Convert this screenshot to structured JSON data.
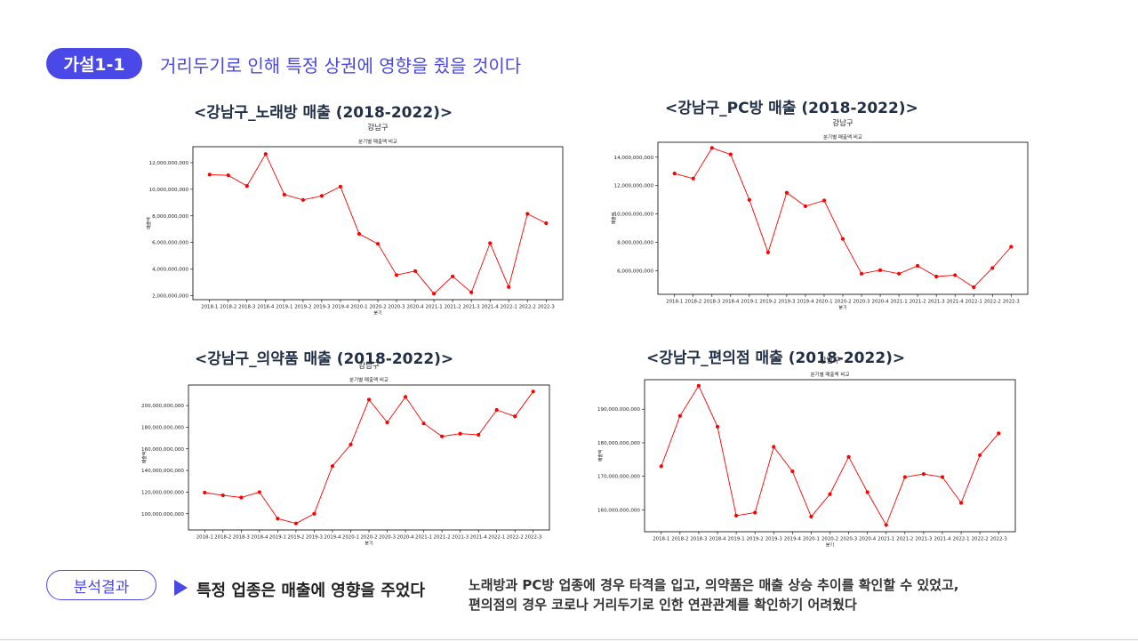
{
  "header": {
    "badge": "가설1-1",
    "title": "거리두기로 인해 특정 상권에 영향을 줬을 것이다"
  },
  "result": {
    "pill": "분석결과",
    "conclusion": "특정 업종은 매출에 영향을 주었다",
    "desc_line1": "노래방과 PC방 업종에 경우 타격을 입고, 의약품은 매출 상승 추이를 확인할 수 있었고,",
    "desc_line2": "편의점의 경우 코로나 거리두기로 인한 연관관계를 확인하기 어려웠다"
  },
  "colors": {
    "accent": "#4a48e6",
    "series": "#ff0000"
  },
  "chart_data": [
    {
      "heading": "<강남구_노래방 매출 (2018-2022)>",
      "type": "line",
      "title": "강남구",
      "subtitle": "분기별 매출액 비교",
      "xlabel": "분기",
      "ylabel": "매출액",
      "x": [
        "2018-1",
        "2018-2",
        "2018-3",
        "2018-4",
        "2019-1",
        "2019-2",
        "2019-3",
        "2019-4",
        "2020-1",
        "2020-2",
        "2020-3",
        "2020-4",
        "2021-1",
        "2021-2",
        "2021-3",
        "2021-4",
        "2022-1",
        "2022-2",
        "2022-3"
      ],
      "values": [
        11100000000,
        11050000000,
        10250000000,
        12650000000,
        9600000000,
        9200000000,
        9500000000,
        10200000000,
        6650000000,
        5900000000,
        3550000000,
        3850000000,
        2150000000,
        3450000000,
        2250000000,
        5950000000,
        2650000000,
        8150000000,
        7450000000
      ],
      "yticks": [
        2000000000,
        4000000000,
        6000000000,
        8000000000,
        10000000000,
        12000000000
      ],
      "ytick_labels": [
        "2,000,000,000",
        "4,000,000,000",
        "6,000,000,000",
        "8,000,000,000",
        "10,000,000,000",
        "12,000,000,000"
      ],
      "ylim": [
        1700000000,
        13200000000
      ],
      "grid": false
    },
    {
      "heading": "<강남구_PC방 매출 (2018-2022)>",
      "type": "line",
      "title": "강남구",
      "subtitle": "분기별 매출액 비교",
      "xlabel": "분기",
      "ylabel": "매출액",
      "x": [
        "2018-1",
        "2018-2",
        "2018-3",
        "2018-4",
        "2019-1",
        "2019-2",
        "2019-3",
        "2019-4",
        "2020-1",
        "2020-2",
        "2020-3",
        "2020-4",
        "2021-1",
        "2021-2",
        "2021-3",
        "2021-4",
        "2022-1",
        "2022-2",
        "2022-3"
      ],
      "values": [
        12850000000,
        12500000000,
        14650000000,
        14200000000,
        11000000000,
        7300000000,
        11500000000,
        10550000000,
        10950000000,
        8250000000,
        5800000000,
        6050000000,
        5800000000,
        6350000000,
        5600000000,
        5700000000,
        4850000000,
        6200000000,
        7700000000
      ],
      "yticks": [
        6000000000,
        8000000000,
        10000000000,
        12000000000,
        14000000000
      ],
      "ytick_labels": [
        "6,000,000,000",
        "8,000,000,000",
        "10,000,000,000",
        "12,000,000,000",
        "14,000,000,000"
      ],
      "ylim": [
        4350000000,
        15050000000
      ],
      "grid": false
    },
    {
      "heading": "<강남구_의약품 매출 (2018-2022)>",
      "type": "line",
      "title": "강남구",
      "subtitle": "분기별 매출액 비교",
      "xlabel": "분기",
      "ylabel": "매출액",
      "x": [
        "2018-1",
        "2018-2",
        "2018-3",
        "2018-4",
        "2019-1",
        "2019-2",
        "2019-3",
        "2019-4",
        "2020-1",
        "2020-2",
        "2020-3",
        "2020-4",
        "2021-1",
        "2021-2",
        "2021-3",
        "2021-4",
        "2022-1",
        "2022-2",
        "2022-3"
      ],
      "values": [
        119500000000,
        117000000000,
        115000000000,
        120000000000,
        95500000000,
        91000000000,
        100000000000,
        144000000000,
        164000000000,
        205500000000,
        184500000000,
        208000000000,
        183500000000,
        171500000000,
        174000000000,
        173000000000,
        196000000000,
        190000000000,
        213000000000
      ],
      "yticks": [
        100000000000,
        120000000000,
        140000000000,
        160000000000,
        180000000000,
        200000000000
      ],
      "ytick_labels": [
        "100,000,000,000",
        "120,000,000,000",
        "140,000,000,000",
        "160,000,000,000",
        "180,000,000,000",
        "200,000,000,000"
      ],
      "ylim": [
        85000000000,
        219000000000
      ],
      "grid": false
    },
    {
      "heading": "<강남구_편의점 매출 (2018-2022)>",
      "type": "line",
      "title": "강남구",
      "subtitle": "분기별 매출액 비교",
      "xlabel": "분기",
      "ylabel": "매출액",
      "x": [
        "2018-1",
        "2018-2",
        "2018-3",
        "2018-4",
        "2019-1",
        "2019-2",
        "2019-3",
        "2019-4",
        "2020-1",
        "2020-2",
        "2020-3",
        "2020-4",
        "2021-1",
        "2021-2",
        "2021-3",
        "2021-4",
        "2022-1",
        "2022-2",
        "2022-3"
      ],
      "values": [
        173000000000,
        188000000000,
        197000000000,
        184800000000,
        158300000000,
        159200000000,
        178800000000,
        171500000000,
        158000000000,
        164700000000,
        175800000000,
        165300000000,
        155500000000,
        169800000000,
        170700000000,
        169800000000,
        162100000000,
        176300000000,
        182800000000
      ],
      "yticks": [
        160000000000,
        170000000000,
        180000000000,
        190000000000
      ],
      "ytick_labels": [
        "160,000,000,000",
        "170,000,000,000",
        "180,000,000,000",
        "190,000,000,000"
      ],
      "ylim": [
        153500000000,
        198800000000
      ],
      "grid": false
    }
  ]
}
